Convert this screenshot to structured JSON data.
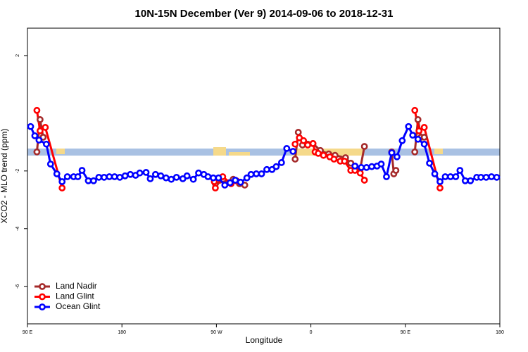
{
  "chart_data": {
    "type": "line",
    "title": "10N-15N December (Ver 9)   2014-09-06 to 2018-12-31",
    "xlabel": "Longitude",
    "ylabel": "XCO2 - MLO trend (ppm)",
    "xlim": [
      90,
      540
    ],
    "ylim": [
      -7.3,
      2.95
    ],
    "xticks": [
      {
        "value": 90,
        "label": "90 E"
      },
      180,
      {
        "value": 270,
        "label": "90 W"
      },
      {
        "value": 360,
        "label": "0"
      },
      {
        "value": 450,
        "label": "90 E"
      },
      {
        "value": 540,
        "label": "180"
      }
    ],
    "yticks": [
      -6,
      -4,
      -2,
      2
    ],
    "legend": "bottom-left",
    "series": [
      {
        "name": "Land Nadir",
        "color": "#a52a2a",
        "x": [
          99,
          102,
          105,
          null,
          269,
          286,
          292,
          297,
          null,
          345,
          348,
          352,
          357,
          362,
          369,
          377,
          383,
          393,
          398,
          407,
          411,
          null,
          437,
          439,
          441,
          null,
          459,
          462,
          465,
          468
        ],
        "values": [
          -1.34,
          -0.22,
          -0.83,
          null,
          -2.44,
          -2.29,
          -2.44,
          -2.49,
          null,
          -1.59,
          -0.66,
          -1.1,
          -1.07,
          -1.05,
          -1.29,
          -1.41,
          -1.46,
          -1.54,
          -1.73,
          -1.93,
          -1.15,
          null,
          -1.34,
          -2.1,
          -1.98,
          null,
          -1.34,
          -0.22,
          -0.83,
          -0.83
        ]
      },
      {
        "name": "Land Glint",
        "color": "#ff0000",
        "x": [
          99,
          102,
          107,
          123,
          null,
          268,
          269,
          276,
          284,
          289,
          null,
          345,
          349,
          353,
          357,
          362,
          364,
          367,
          372,
          378,
          382,
          388,
          392,
          398,
          402,
          407,
          411,
          null,
          459,
          463,
          468,
          483
        ],
        "values": [
          0.1,
          -0.61,
          -0.49,
          -2.59,
          null,
          -2.37,
          -2.59,
          -2.2,
          -2.44,
          -2.34,
          null,
          -1.07,
          -0.85,
          -0.95,
          -1.1,
          -1.05,
          -1.34,
          -1.39,
          -1.46,
          -1.51,
          -1.59,
          -1.66,
          -1.66,
          -1.98,
          -1.98,
          -2.07,
          -2.32,
          null,
          0.1,
          -0.61,
          -0.49,
          -2.59
        ]
      },
      {
        "name": "Ocean Glint",
        "color": "#0000ff",
        "x": [
          93,
          97,
          101,
          108,
          112,
          118,
          123,
          128,
          134,
          138,
          142,
          148,
          153,
          158,
          163,
          168,
          173,
          178,
          183,
          188,
          193,
          197,
          203,
          207,
          212,
          217,
          222,
          227,
          232,
          238,
          242,
          248,
          253,
          258,
          262,
          267,
          272,
          278,
          283,
          288,
          293,
          299,
          303,
          308,
          313,
          318,
          323,
          327,
          332,
          337,
          343,
          null,
          402,
          408,
          413,
          418,
          423,
          427,
          432,
          437,
          442,
          447,
          453,
          457,
          462,
          468,
          473,
          478,
          483,
          488,
          493,
          498,
          502,
          507,
          512,
          518,
          522,
          527,
          532,
          537
        ],
        "values": [
          -0.46,
          -0.78,
          -0.93,
          -1.07,
          -1.76,
          -2.1,
          -2.37,
          -2.2,
          -2.2,
          -2.2,
          -1.98,
          -2.34,
          -2.34,
          -2.22,
          -2.22,
          -2.2,
          -2.2,
          -2.22,
          -2.17,
          -2.12,
          -2.15,
          -2.07,
          -2.05,
          -2.27,
          -2.12,
          -2.17,
          -2.24,
          -2.29,
          -2.22,
          -2.27,
          -2.17,
          -2.29,
          -2.07,
          -2.12,
          -2.2,
          -2.24,
          -2.24,
          -2.49,
          -2.41,
          -2.32,
          -2.39,
          -2.24,
          -2.12,
          -2.1,
          -2.1,
          -1.95,
          -1.95,
          -1.85,
          -1.71,
          -1.22,
          -1.32,
          null,
          -1.83,
          -1.88,
          -1.88,
          -1.85,
          -1.83,
          -1.76,
          -2.2,
          -1.37,
          -1.51,
          -0.95,
          -0.46,
          -0.76,
          -0.9,
          -1.07,
          -1.73,
          -2.1,
          -2.37,
          -2.2,
          -2.2,
          -2.2,
          -1.98,
          -2.34,
          -2.34,
          -2.22,
          -2.22,
          -2.22,
          -2.2,
          -2.22
        ]
      }
    ]
  }
}
